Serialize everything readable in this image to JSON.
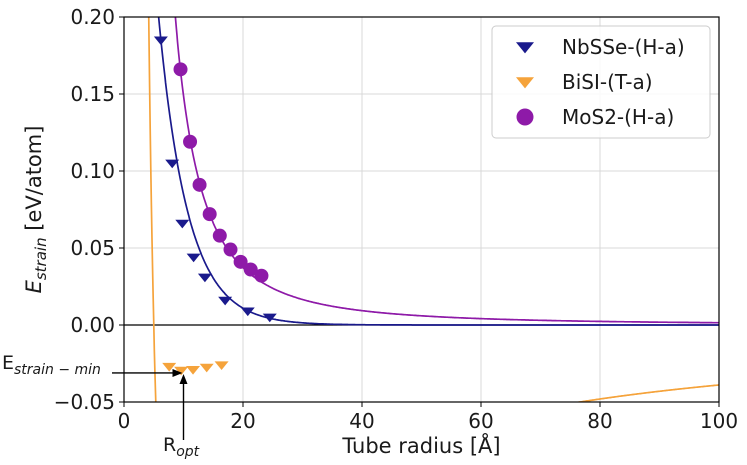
{
  "chart_data": {
    "type": "line",
    "title": "",
    "xlabel": "Tube radius [Å]",
    "ylabel": {
      "base": "E",
      "sub": "strain",
      "rest": " [eV/atom]"
    },
    "xlim": [
      0,
      100
    ],
    "ylim": [
      -0.05,
      0.2
    ],
    "xticks": [
      0,
      20,
      40,
      60,
      80,
      100
    ],
    "xtick_labels": [
      "0",
      "20",
      "40",
      "60",
      "80",
      "100"
    ],
    "yticks": [
      -0.05,
      0.0,
      0.05,
      0.1,
      0.15,
      0.2
    ],
    "ytick_labels": [
      "−0.05",
      "0.00",
      "0.05",
      "0.10",
      "0.15",
      "0.20"
    ],
    "grid": true,
    "legend_position": "top-right",
    "series": [
      {
        "name": "NbSSe-(H-a)",
        "color": "#1a1a8c",
        "marker": "triangle-down",
        "fit": {
          "a": 9.36,
          "b": 18.0
        },
        "points": [
          [
            6.2,
            0.185
          ],
          [
            8.1,
            0.105
          ],
          [
            9.8,
            0.066
          ],
          [
            11.7,
            0.044
          ],
          [
            13.6,
            0.031
          ],
          [
            17.0,
            0.016
          ],
          [
            20.8,
            0.009
          ],
          [
            24.5,
            0.005
          ]
        ]
      },
      {
        "name": "BiSI-(T-a)",
        "color": "#f5a33b",
        "marker": "triangle-down",
        "fit": {
          "a": 14.9,
          "b": 1.565
        },
        "points": [
          [
            7.6,
            -0.027
          ],
          [
            9.6,
            -0.0295
          ],
          [
            11.6,
            -0.029
          ],
          [
            13.9,
            -0.0275
          ],
          [
            16.4,
            -0.026
          ]
        ]
      },
      {
        "name": "MoS2-(H-a)",
        "color": "#8e1aa8",
        "marker": "circle",
        "fit": {
          "a": 14.9,
          "b": 0
        },
        "points": [
          [
            9.5,
            0.166
          ],
          [
            11.1,
            0.119
          ],
          [
            12.7,
            0.091
          ],
          [
            14.4,
            0.072
          ],
          [
            16.1,
            0.058
          ],
          [
            17.9,
            0.049
          ],
          [
            19.6,
            0.041
          ],
          [
            21.3,
            0.036
          ],
          [
            23.1,
            0.032
          ]
        ]
      }
    ],
    "annotations": {
      "e_strain_min": {
        "base": "E",
        "sub": "strain − min",
        "value": -0.0305
      },
      "r_opt": {
        "base": "R",
        "sub": "opt",
        "value": 10.0
      }
    }
  }
}
